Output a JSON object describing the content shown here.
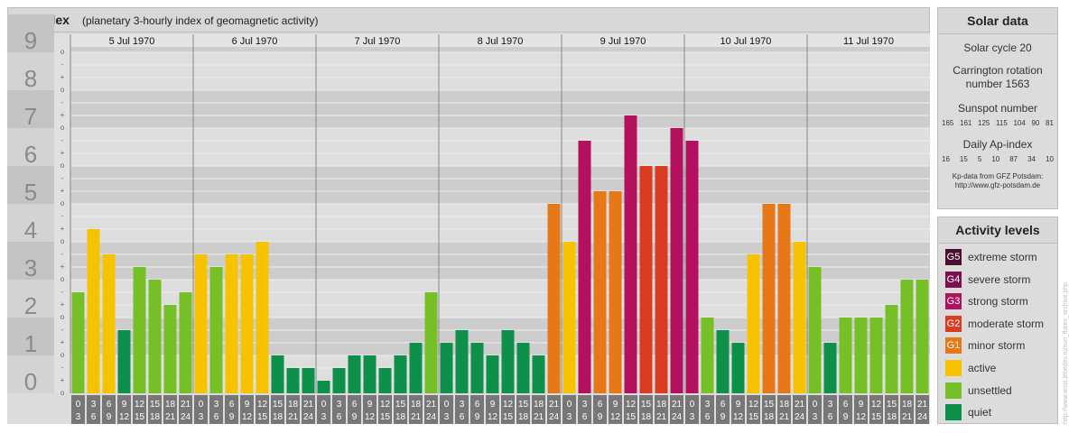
{
  "chart_data": {
    "type": "bar",
    "title": "Kp-index",
    "subtitle": "(planetary 3-hourly index of geomagnetic activity)",
    "y_ticks": [
      "0",
      "1",
      "2",
      "3",
      "4",
      "5",
      "6",
      "7",
      "8",
      "9"
    ],
    "minor_ticks": [
      "o",
      "+",
      "-"
    ],
    "ylim": [
      0,
      9
    ],
    "days": [
      "5 Jul 1970",
      "6 Jul 1970",
      "7 Jul 1970",
      "8 Jul 1970",
      "9 Jul 1970",
      "10 Jul 1970",
      "11 Jul 1970"
    ],
    "interval_labels": [
      [
        "0",
        "3"
      ],
      [
        "3",
        "6"
      ],
      [
        "6",
        "9"
      ],
      [
        "9",
        "12"
      ],
      [
        "12",
        "15"
      ],
      [
        "15",
        "18"
      ],
      [
        "18",
        "21"
      ],
      [
        "21",
        "24"
      ]
    ],
    "values": [
      [
        2.667,
        4.333,
        3.667,
        1.667,
        3.333,
        3.0,
        2.333,
        2.667
      ],
      [
        3.667,
        3.333,
        3.667,
        3.667,
        4.0,
        1.0,
        0.667,
        0.667
      ],
      [
        0.333,
        0.667,
        1.0,
        1.0,
        0.667,
        1.0,
        1.333,
        2.667
      ],
      [
        1.333,
        1.667,
        1.333,
        1.0,
        1.667,
        1.333,
        1.0,
        5.0
      ],
      [
        4.0,
        6.667,
        5.333,
        5.333,
        7.333,
        6.0,
        6.0,
        7.0
      ],
      [
        6.667,
        2.0,
        1.667,
        1.333,
        3.667,
        5.0,
        5.0,
        4.0
      ],
      [
        3.333,
        1.333,
        2.0,
        2.0,
        2.0,
        2.333,
        3.0,
        3.0
      ]
    ]
  },
  "solar": {
    "title": "Solar data",
    "cycle": "Solar cycle 20",
    "rotation_line1": "Carrington rotation",
    "rotation_line2": "number 1563",
    "sunspot_title": "Sunspot number",
    "sunspot_values": [
      "165",
      "161",
      "125",
      "115",
      "104",
      "90",
      "81"
    ],
    "ap_title": "Daily Ap-index",
    "ap_values": [
      "16",
      "15",
      "5",
      "10",
      "87",
      "34",
      "10"
    ],
    "credit_line1": "Kp-data from GFZ Potsdam:",
    "credit_line2": "http://www.gfz-potsdam.de"
  },
  "activity": {
    "title": "Activity levels",
    "levels": [
      {
        "code": "G5",
        "label": "extreme storm",
        "color": "#4a0f33"
      },
      {
        "code": "G4",
        "label": "severe storm",
        "color": "#7d0f4a"
      },
      {
        "code": "G3",
        "label": "strong storm",
        "color": "#b3105e"
      },
      {
        "code": "G2",
        "label": "moderate storm",
        "color": "#d93c21"
      },
      {
        "code": "G1",
        "label": "minor storm",
        "color": "#e67817"
      },
      {
        "code": "",
        "label": "active",
        "color": "#f7c200"
      },
      {
        "code": "",
        "label": "unsettled",
        "color": "#77bf26"
      },
      {
        "code": "",
        "label": "quiet",
        "color": "#0e8f4a"
      }
    ]
  },
  "watermark": "http://www.tesis.lebedev.ru/sun_flares_archive.php"
}
